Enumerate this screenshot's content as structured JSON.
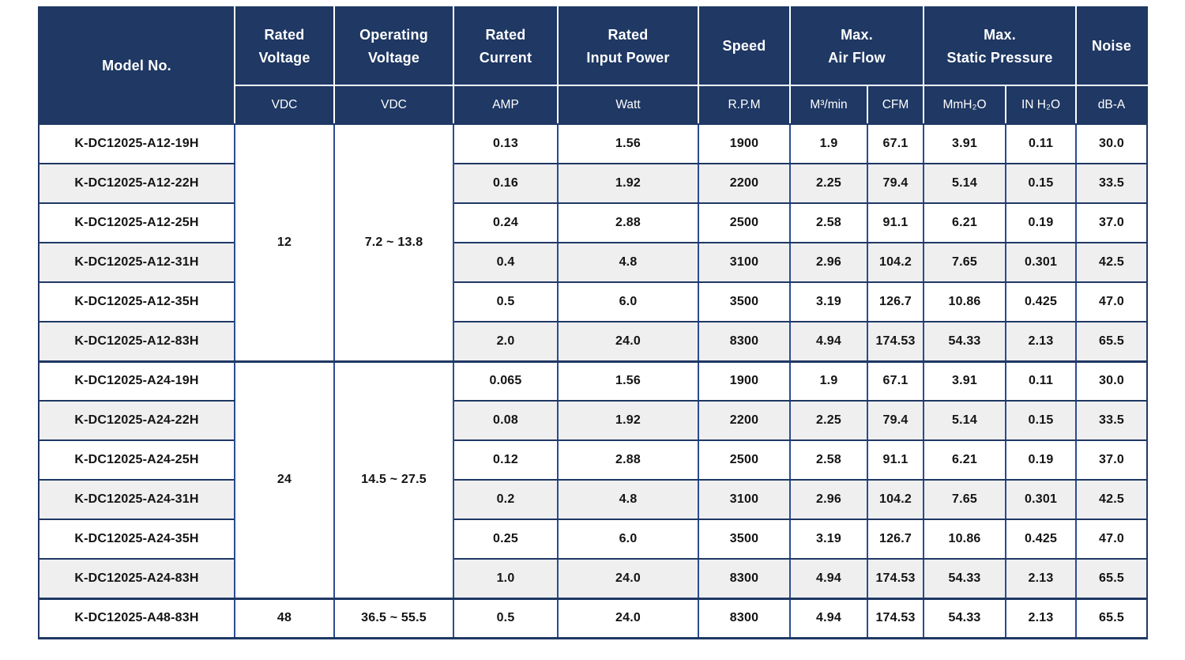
{
  "colors": {
    "header_bg": "#1f3864",
    "border_horizontal": "#1f3864",
    "border_vertical": "#2b4c94",
    "stripe_row": "#efefef",
    "data_text": "#141414",
    "header_text": "#ffffff"
  },
  "table": {
    "header": {
      "model": "Model No.",
      "rated_voltage": "Rated\nVoltage",
      "operating_voltage": "Operating\nVoltage",
      "rated_current": "Rated\nCurrent",
      "rated_input_power": "Rated\nInput Power",
      "speed": "Speed",
      "max_air_flow": "Max.\nAir Flow",
      "max_static_pressure": "Max.\nStatic Pressure",
      "noise": "Noise"
    },
    "units": {
      "rated_voltage": "VDC",
      "operating_voltage": "VDC",
      "rated_current": "AMP",
      "rated_input_power": "Watt",
      "speed": "R.P.M",
      "air_flow_m3min": "M³/min",
      "air_flow_cfm": "CFM",
      "static_pressure_mmh2o": "MmH₂O",
      "static_pressure_inh2o": "IN H₂O",
      "noise": "dB-A"
    },
    "groups": [
      {
        "rated_voltage": "12",
        "operating_voltage": "7.2 ~ 13.8",
        "rows": [
          {
            "model": "K-DC12025-A12-19H",
            "current": "0.13",
            "power": "1.56",
            "speed": "1900",
            "airflow_m3min": "1.9",
            "airflow_cfm": "67.1",
            "pressure_mmh2o": "3.91",
            "pressure_inh2o": "0.11",
            "noise": "30.0"
          },
          {
            "model": "K-DC12025-A12-22H",
            "current": "0.16",
            "power": "1.92",
            "speed": "2200",
            "airflow_m3min": "2.25",
            "airflow_cfm": "79.4",
            "pressure_mmh2o": "5.14",
            "pressure_inh2o": "0.15",
            "noise": "33.5"
          },
          {
            "model": "K-DC12025-A12-25H",
            "current": "0.24",
            "power": "2.88",
            "speed": "2500",
            "airflow_m3min": "2.58",
            "airflow_cfm": "91.1",
            "pressure_mmh2o": "6.21",
            "pressure_inh2o": "0.19",
            "noise": "37.0"
          },
          {
            "model": "K-DC12025-A12-31H",
            "current": "0.4",
            "power": "4.8",
            "speed": "3100",
            "airflow_m3min": "2.96",
            "airflow_cfm": "104.2",
            "pressure_mmh2o": "7.65",
            "pressure_inh2o": "0.301",
            "noise": "42.5"
          },
          {
            "model": "K-DC12025-A12-35H",
            "current": "0.5",
            "power": "6.0",
            "speed": "3500",
            "airflow_m3min": "3.19",
            "airflow_cfm": "126.7",
            "pressure_mmh2o": "10.86",
            "pressure_inh2o": "0.425",
            "noise": "47.0"
          },
          {
            "model": "K-DC12025-A12-83H",
            "current": "2.0",
            "power": "24.0",
            "speed": "8300",
            "airflow_m3min": "4.94",
            "airflow_cfm": "174.53",
            "pressure_mmh2o": "54.33",
            "pressure_inh2o": "2.13",
            "noise": "65.5"
          }
        ]
      },
      {
        "rated_voltage": "24",
        "operating_voltage": "14.5 ~ 27.5",
        "rows": [
          {
            "model": "K-DC12025-A24-19H",
            "current": "0.065",
            "power": "1.56",
            "speed": "1900",
            "airflow_m3min": "1.9",
            "airflow_cfm": "67.1",
            "pressure_mmh2o": "3.91",
            "pressure_inh2o": "0.11",
            "noise": "30.0"
          },
          {
            "model": "K-DC12025-A24-22H",
            "current": "0.08",
            "power": "1.92",
            "speed": "2200",
            "airflow_m3min": "2.25",
            "airflow_cfm": "79.4",
            "pressure_mmh2o": "5.14",
            "pressure_inh2o": "0.15",
            "noise": "33.5"
          },
          {
            "model": "K-DC12025-A24-25H",
            "current": "0.12",
            "power": "2.88",
            "speed": "2500",
            "airflow_m3min": "2.58",
            "airflow_cfm": "91.1",
            "pressure_mmh2o": "6.21",
            "pressure_inh2o": "0.19",
            "noise": "37.0"
          },
          {
            "model": "K-DC12025-A24-31H",
            "current": "0.2",
            "power": "4.8",
            "speed": "3100",
            "airflow_m3min": "2.96",
            "airflow_cfm": "104.2",
            "pressure_mmh2o": "7.65",
            "pressure_inh2o": "0.301",
            "noise": "42.5"
          },
          {
            "model": "K-DC12025-A24-35H",
            "current": "0.25",
            "power": "6.0",
            "speed": "3500",
            "airflow_m3min": "3.19",
            "airflow_cfm": "126.7",
            "pressure_mmh2o": "10.86",
            "pressure_inh2o": "0.425",
            "noise": "47.0"
          },
          {
            "model": "K-DC12025-A24-83H",
            "current": "1.0",
            "power": "24.0",
            "speed": "8300",
            "airflow_m3min": "4.94",
            "airflow_cfm": "174.53",
            "pressure_mmh2o": "54.33",
            "pressure_inh2o": "2.13",
            "noise": "65.5"
          }
        ]
      },
      {
        "rated_voltage": "48",
        "operating_voltage": "36.5 ~ 55.5",
        "rows": [
          {
            "model": "K-DC12025-A48-83H",
            "current": "0.5",
            "power": "24.0",
            "speed": "8300",
            "airflow_m3min": "4.94",
            "airflow_cfm": "174.53",
            "pressure_mmh2o": "54.33",
            "pressure_inh2o": "2.13",
            "noise": "65.5"
          }
        ]
      }
    ]
  }
}
